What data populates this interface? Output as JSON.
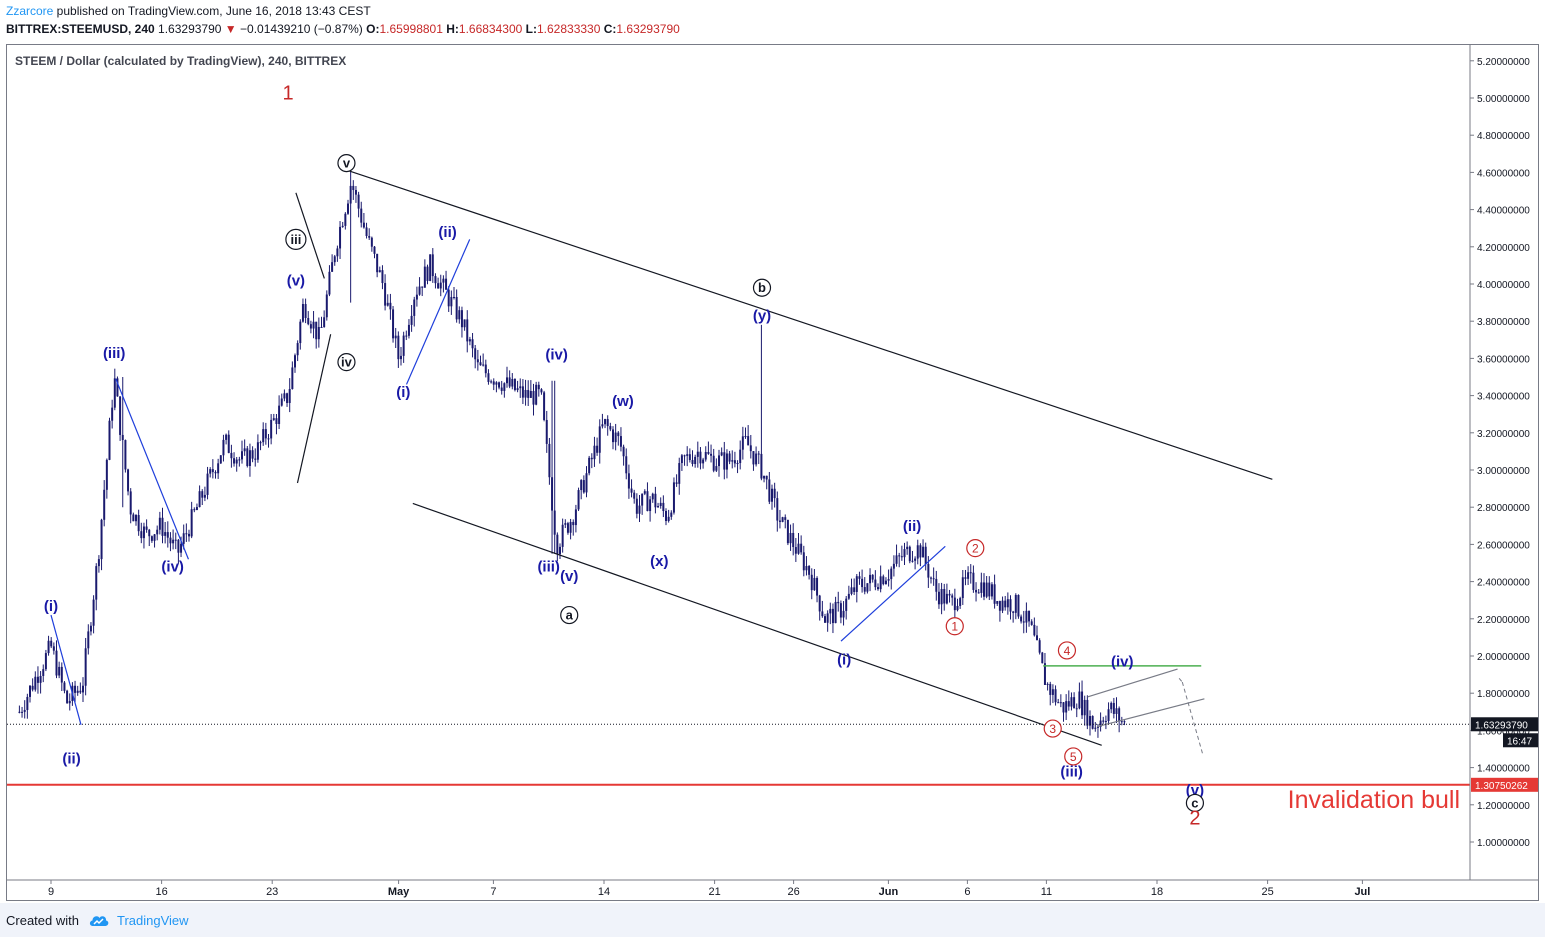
{
  "header": {
    "author": "Zzarcore",
    "published_text": " published on TradingView.com, June 16, 2018 13:43 CEST",
    "symbol": "BITTREX:STEEMUSD, 240",
    "last": "1.63293790",
    "change": "−0.01439210 (−0.87%)",
    "o_label": "O:",
    "o": "1.65998801",
    "h_label": "H:",
    "h": "1.66834300",
    "l_label": "L:",
    "l": "1.62833330",
    "c_label": "C:",
    "c": "1.63293790"
  },
  "footer": {
    "created_with": "Created with",
    "brand": "TradingView"
  },
  "colors": {
    "candle": "#1a1a6e",
    "wave_blue": "#1919a6",
    "wave_red": "#c62828",
    "trend_blue": "#1f3fdb",
    "trend_black": "#131722",
    "invalidation": "#e53935",
    "green_level": "#4caf50"
  },
  "chart_data": {
    "type": "candlestick",
    "title": "STEEM / Dollar (calculated by TradingView), 240, BITTREX",
    "x_ticks": [
      "9",
      "16",
      "23",
      "May",
      "7",
      "14",
      "21",
      "26",
      "Jun",
      "6",
      "11",
      "18",
      "25",
      "Jul"
    ],
    "y_ticks": [
      "5.20000000",
      "5.00000000",
      "4.80000000",
      "4.60000000",
      "4.40000000",
      "4.20000000",
      "4.00000000",
      "3.80000000",
      "3.60000000",
      "3.40000000",
      "3.20000000",
      "3.00000000",
      "2.80000000",
      "2.60000000",
      "2.40000000",
      "2.20000000",
      "2.00000000",
      "1.80000000",
      "1.60000000",
      "1.40000000",
      "1.20000000",
      "1.00000000"
    ],
    "ylim": [
      0.85,
      5.3
    ],
    "last_price": {
      "label": "1.63293790",
      "value": 1.6329379,
      "time_label": "16:47"
    },
    "invalidation_level": {
      "label": "1.30750262",
      "value": 1.30750262,
      "text": "Invalidation bull"
    },
    "price_path": [
      [
        "2018-04-07",
        1.7
      ],
      [
        "2018-04-08",
        1.88
      ],
      [
        "2018-04-09",
        2.05
      ],
      [
        "2018-04-10",
        1.75
      ],
      [
        "2018-04-11",
        1.85
      ],
      [
        "2018-04-12",
        2.55
      ],
      [
        "2018-04-13",
        3.5
      ],
      [
        "2018-04-14",
        2.8
      ],
      [
        "2018-04-15",
        2.65
      ],
      [
        "2018-04-16",
        2.7
      ],
      [
        "2018-04-17",
        2.55
      ],
      [
        "2018-04-18",
        2.75
      ],
      [
        "2018-04-19",
        2.95
      ],
      [
        "2018-04-20",
        3.15
      ],
      [
        "2018-04-21",
        3.05
      ],
      [
        "2018-04-22",
        3.1
      ],
      [
        "2018-04-23",
        3.25
      ],
      [
        "2018-04-24",
        3.4
      ],
      [
        "2018-04-25",
        3.9
      ],
      [
        "2018-04-26",
        3.7
      ],
      [
        "2018-04-27",
        4.2
      ],
      [
        "2018-04-28",
        4.55
      ],
      [
        "2018-04-29",
        4.25
      ],
      [
        "2018-04-30",
        4.0
      ],
      [
        "2018-05-01",
        3.6
      ],
      [
        "2018-05-02",
        3.95
      ],
      [
        "2018-05-03",
        4.1
      ],
      [
        "2018-05-04",
        3.95
      ],
      [
        "2018-05-05",
        3.8
      ],
      [
        "2018-05-06",
        3.55
      ],
      [
        "2018-05-07",
        3.5
      ],
      [
        "2018-05-08",
        3.45
      ],
      [
        "2018-05-09",
        3.4
      ],
      [
        "2018-05-10",
        3.4
      ],
      [
        "2018-05-11",
        2.6
      ],
      [
        "2018-05-12",
        2.75
      ],
      [
        "2018-05-13",
        3.0
      ],
      [
        "2018-05-14",
        3.25
      ],
      [
        "2018-05-15",
        3.15
      ],
      [
        "2018-05-16",
        2.8
      ],
      [
        "2018-05-17",
        2.85
      ],
      [
        "2018-05-18",
        2.75
      ],
      [
        "2018-05-19",
        3.05
      ],
      [
        "2018-05-20",
        3.1
      ],
      [
        "2018-05-21",
        3.05
      ],
      [
        "2018-05-22",
        3.05
      ],
      [
        "2018-05-23",
        3.15
      ],
      [
        "2018-05-24",
        3.0
      ],
      [
        "2018-05-25",
        2.75
      ],
      [
        "2018-05-26",
        2.6
      ],
      [
        "2018-05-27",
        2.45
      ],
      [
        "2018-05-28",
        2.2
      ],
      [
        "2018-05-29",
        2.25
      ],
      [
        "2018-05-30",
        2.38
      ],
      [
        "2018-05-31",
        2.4
      ],
      [
        "2018-06-01",
        2.45
      ],
      [
        "2018-06-02",
        2.55
      ],
      [
        "2018-06-03",
        2.58
      ],
      [
        "2018-06-04",
        2.35
      ],
      [
        "2018-06-05",
        2.28
      ],
      [
        "2018-06-06",
        2.4
      ],
      [
        "2018-06-07",
        2.38
      ],
      [
        "2018-06-08",
        2.3
      ],
      [
        "2018-06-09",
        2.28
      ],
      [
        "2018-06-10",
        2.15
      ],
      [
        "2018-06-11",
        1.85
      ],
      [
        "2018-06-12",
        1.72
      ],
      [
        "2018-06-13",
        1.78
      ],
      [
        "2018-06-14",
        1.62
      ],
      [
        "2018-06-15",
        1.72
      ],
      [
        "2018-06-16",
        1.63
      ]
    ],
    "wave_labels": [
      {
        "text": "1",
        "date": "2018-04-24",
        "price": 5.02,
        "color": "red",
        "shape": "plain"
      },
      {
        "text": "v",
        "date": "2018-04-27.7",
        "price": 4.65,
        "color": "black",
        "shape": "circle"
      },
      {
        "text": "iii",
        "date": "2018-04-24.5",
        "price": 4.24,
        "color": "black",
        "shape": "circle"
      },
      {
        "text": "iv",
        "date": "2018-04-27.7",
        "price": 3.58,
        "color": "black",
        "shape": "circle"
      },
      {
        "text": "(v)",
        "date": "2018-04-24.5",
        "price": 4.02,
        "color": "blue",
        "shape": "plain"
      },
      {
        "text": "(iii)",
        "date": "2018-04-13",
        "price": 3.63,
        "color": "blue",
        "shape": "plain"
      },
      {
        "text": "(iv)",
        "date": "2018-04-16.7",
        "price": 2.48,
        "color": "blue",
        "shape": "plain"
      },
      {
        "text": "(i)",
        "date": "2018-04-09",
        "price": 2.27,
        "color": "blue",
        "shape": "plain"
      },
      {
        "text": "(ii)",
        "date": "2018-04-10.3",
        "price": 1.45,
        "color": "blue",
        "shape": "plain"
      },
      {
        "text": "(ii)",
        "date": "2018-05-04.1",
        "price": 4.28,
        "color": "blue",
        "shape": "plain"
      },
      {
        "text": "(i)",
        "date": "2018-05-01.3",
        "price": 3.42,
        "color": "blue",
        "shape": "plain"
      },
      {
        "text": "(iv)",
        "date": "2018-05-11",
        "price": 3.62,
        "color": "blue",
        "shape": "plain"
      },
      {
        "text": "(iii)",
        "date": "2018-05-10.5",
        "price": 2.48,
        "color": "blue",
        "shape": "plain"
      },
      {
        "text": "(v)",
        "date": "2018-05-11.8",
        "price": 2.43,
        "color": "blue",
        "shape": "plain"
      },
      {
        "text": "a",
        "date": "2018-05-11.8",
        "price": 2.22,
        "color": "black",
        "shape": "circle"
      },
      {
        "text": "(w)",
        "date": "2018-05-15.2",
        "price": 3.37,
        "color": "blue",
        "shape": "plain"
      },
      {
        "text": "(x)",
        "date": "2018-05-17.5",
        "price": 2.51,
        "color": "blue",
        "shape": "plain"
      },
      {
        "text": "b",
        "date": "2018-05-24",
        "price": 3.98,
        "color": "black",
        "shape": "circle"
      },
      {
        "text": "(y)",
        "date": "2018-05-24",
        "price": 3.83,
        "color": "blue",
        "shape": "plain"
      },
      {
        "text": "(i)",
        "date": "2018-05-29.2",
        "price": 1.98,
        "color": "blue",
        "shape": "plain"
      },
      {
        "text": "(ii)",
        "date": "2018-06-02.5",
        "price": 2.7,
        "color": "blue",
        "shape": "plain"
      },
      {
        "text": "2",
        "date": "2018-06-06.5",
        "price": 2.58,
        "color": "red",
        "shape": "circle"
      },
      {
        "text": "1",
        "date": "2018-06-05.2",
        "price": 2.16,
        "color": "red",
        "shape": "circle"
      },
      {
        "text": "4",
        "date": "2018-06-12.3",
        "price": 2.03,
        "color": "red",
        "shape": "circle"
      },
      {
        "text": "3",
        "date": "2018-06-11.4",
        "price": 1.61,
        "color": "red",
        "shape": "circle"
      },
      {
        "text": "5",
        "date": "2018-06-12.7",
        "price": 1.46,
        "color": "red",
        "shape": "circle"
      },
      {
        "text": "(iii)",
        "date": "2018-06-12.6",
        "price": 1.38,
        "color": "blue",
        "shape": "plain"
      },
      {
        "text": "(iv)",
        "date": "2018-06-15.8",
        "price": 1.97,
        "color": "blue",
        "shape": "plain"
      },
      {
        "text": "(v)",
        "date": "2018-06-20.4",
        "price": 1.28,
        "color": "blue",
        "shape": "plain"
      },
      {
        "text": "c",
        "date": "2018-06-20.4",
        "price": 1.21,
        "color": "black",
        "shape": "circle"
      },
      {
        "text": "2",
        "date": "2018-06-20.4",
        "price": 1.12,
        "color": "red",
        "shape": "plain"
      }
    ]
  }
}
